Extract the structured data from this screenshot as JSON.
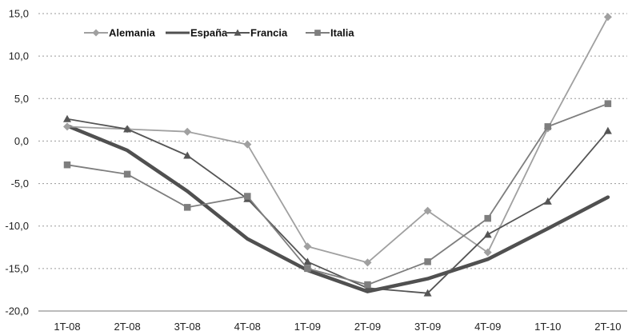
{
  "chart_data": {
    "type": "line",
    "categories": [
      "1T-08",
      "2T-08",
      "3T-08",
      "4T-08",
      "1T-09",
      "2T-09",
      "3T-09",
      "4T-09",
      "1T-10",
      "2T-10"
    ],
    "ylim": [
      -20,
      15
    ],
    "yticks": [
      15,
      10,
      5,
      0,
      -5,
      -10,
      -15,
      -20
    ],
    "ytick_labels": [
      "15,0",
      "10,0",
      "5,0",
      "0,0",
      "-5,0",
      "-10,0",
      "-15,0",
      "-20,0"
    ],
    "grid": "horizontal-dotted",
    "legend_position": "top-left",
    "series": [
      {
        "name": "Alemania",
        "color": "#a0a0a0",
        "marker": "diamond",
        "line_weight": "thin",
        "values": [
          1.7,
          1.4,
          1.1,
          -0.4,
          -12.4,
          -14.3,
          -8.2,
          -13.1,
          1.5,
          14.6
        ]
      },
      {
        "name": "España",
        "color": "#505050",
        "marker": "none",
        "line_weight": "thick",
        "values": [
          1.8,
          -1.1,
          -5.9,
          -11.5,
          -15.2,
          -17.7,
          -16.2,
          -13.9,
          -10.3,
          -6.6
        ]
      },
      {
        "name": "Francia",
        "color": "#555555",
        "marker": "triangle",
        "line_weight": "thin",
        "values": [
          2.6,
          1.4,
          -1.7,
          -6.8,
          -14.2,
          -17.3,
          -17.9,
          -11.0,
          -7.1,
          1.2
        ]
      },
      {
        "name": "Italia",
        "color": "#7e7e7e",
        "marker": "square",
        "line_weight": "thin",
        "values": [
          -2.8,
          -3.9,
          -7.8,
          -6.5,
          -15.0,
          -16.9,
          -14.2,
          -9.1,
          1.7,
          4.4
        ]
      }
    ]
  }
}
